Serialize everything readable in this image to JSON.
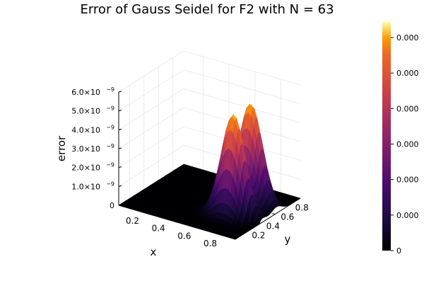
{
  "chart_data": {
    "type": "surface3d",
    "title": "Error of Gauss Seidel for F2 with N = 63",
    "xlabel": "x",
    "ylabel": "y",
    "zlabel": "error",
    "xlim": [
      0.05,
      0.95
    ],
    "ylim": [
      0.05,
      0.95
    ],
    "zlim": [
      0,
      6e-09
    ],
    "x_ticks": [
      "0.2",
      "0.4",
      "0.6",
      "0.8"
    ],
    "y_ticks": [
      "0.2",
      "0.4",
      "0.6",
      "0.8"
    ],
    "z_ticks": [
      {
        "mantissa": "0",
        "exp": ""
      },
      {
        "mantissa": "1.0×10",
        "exp": "−9"
      },
      {
        "mantissa": "2.0×10",
        "exp": "−9"
      },
      {
        "mantissa": "3.0×10",
        "exp": "−9"
      },
      {
        "mantissa": "4.0×10",
        "exp": "−9"
      },
      {
        "mantissa": "5.0×10",
        "exp": "−9"
      },
      {
        "mantissa": "6.0×10",
        "exp": "−9"
      }
    ],
    "peaks": [
      {
        "x": 0.75,
        "y": 0.38,
        "z": 5.4e-09
      },
      {
        "x": 0.75,
        "y": 0.62,
        "z": 5.4e-09
      }
    ],
    "grid": true,
    "colormap": "inferno",
    "colorbar_ticks": [
      "0",
      "0.000",
      "0.000",
      "0.000",
      "0.000",
      "0.000",
      "0.000"
    ]
  }
}
